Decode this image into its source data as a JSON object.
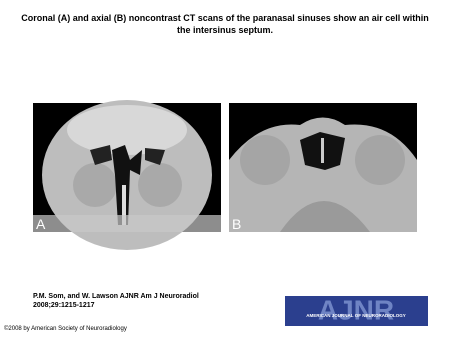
{
  "header": {
    "title": "Coronal (A) and axial (B) noncontrast CT scans of the paranasal sinuses show an air cell within the intersinus septum."
  },
  "panels": [
    {
      "label": "A"
    },
    {
      "label": "B"
    }
  ],
  "citation": {
    "authors": "P.M. Som, and W. Lawson AJNR Am J Neuroradiol",
    "reference": "2008;29:1215-1217"
  },
  "logo": {
    "name": "AJNR",
    "subtitle": "AMERICAN JOURNAL OF NEURORADIOLOGY"
  },
  "footer": {
    "copyright": "©2008 by American Society of Neuroradiology"
  }
}
